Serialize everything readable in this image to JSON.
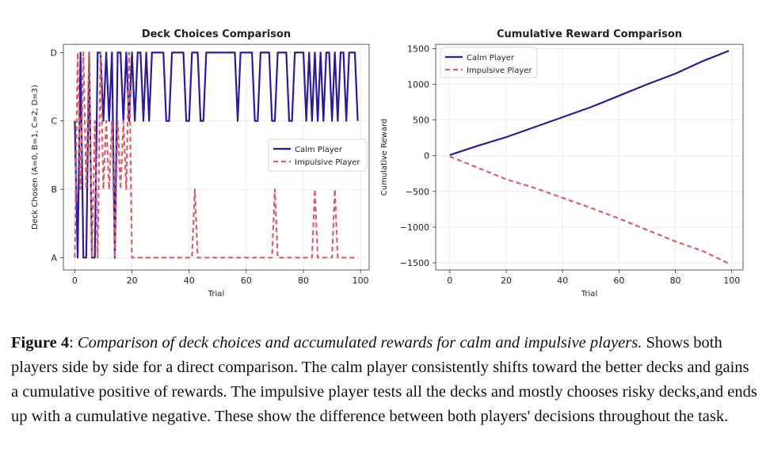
{
  "chart_data": [
    {
      "type": "line",
      "title": "Deck Choices Comparison",
      "xlabel": "Trial",
      "ylabel": "Deck Chosen (A=0, B=1, C=2, D=3)",
      "xlim": [
        -4,
        103
      ],
      "ylim": [
        -0.18,
        3.12
      ],
      "xticks": [
        0,
        20,
        40,
        60,
        80,
        100
      ],
      "yticks": [
        0,
        1,
        2,
        3
      ],
      "ytick_labels": [
        "A",
        "B",
        "C",
        "D"
      ],
      "grid": true,
      "legend": "center-right",
      "series": [
        {
          "name": "Calm Player",
          "color": "#2b1b9a",
          "style": "solid",
          "values": [
            2,
            0,
            3,
            0,
            0,
            3,
            0,
            0,
            3,
            3,
            2,
            3,
            2,
            3,
            0,
            3,
            3,
            2,
            3,
            2,
            3,
            2,
            3,
            3,
            2,
            3,
            2,
            3,
            3,
            3,
            3,
            3,
            2,
            2,
            3,
            3,
            3,
            3,
            3,
            2,
            2,
            3,
            3,
            3,
            2,
            2,
            3,
            3,
            3,
            3,
            3,
            3,
            3,
            3,
            3,
            3,
            3,
            2,
            3,
            3,
            3,
            3,
            3,
            2,
            2,
            3,
            3,
            3,
            3,
            2,
            2,
            3,
            3,
            3,
            3,
            2,
            2,
            3,
            3,
            3,
            3,
            2,
            3,
            2,
            3,
            2,
            3,
            2,
            3,
            3,
            2,
            3,
            2,
            3,
            3,
            2,
            3,
            3,
            3,
            2
          ]
        },
        {
          "name": "Impulsive Player",
          "color": "#d95f6a",
          "style": "dashed",
          "values": [
            0,
            3,
            1,
            3,
            1,
            3,
            0,
            2,
            0,
            3,
            1,
            2,
            1,
            2,
            0,
            2,
            1,
            2,
            1,
            3,
            0,
            0,
            0,
            0,
            0,
            0,
            0,
            0,
            0,
            0,
            0,
            0,
            0,
            0,
            0,
            0,
            0,
            0,
            0,
            0,
            0,
            0,
            1,
            0,
            0,
            0,
            0,
            0,
            0,
            0,
            0,
            0,
            0,
            0,
            0,
            0,
            0,
            0,
            0,
            0,
            0,
            0,
            0,
            0,
            0,
            0,
            0,
            0,
            0,
            0,
            1,
            0,
            0,
            0,
            0,
            0,
            0,
            0,
            0,
            0,
            0,
            0,
            0,
            0,
            1,
            0,
            0,
            0,
            0,
            0,
            0,
            1,
            0,
            0,
            0,
            0,
            0,
            0,
            0,
            0
          ]
        }
      ]
    },
    {
      "type": "line",
      "title": "Cumulative Reward Comparison",
      "xlabel": "Trial",
      "ylabel": "Cumulative Reward",
      "xlim": [
        -5,
        104
      ],
      "ylim": [
        -1600,
        1560
      ],
      "xticks": [
        0,
        20,
        40,
        60,
        80,
        100
      ],
      "yticks": [
        -1500,
        -1000,
        -500,
        0,
        500,
        1000,
        1500
      ],
      "ytick_labels": [
        "−1500",
        "−1000",
        "−500",
        "0",
        "500",
        "1000",
        "1500"
      ],
      "grid": true,
      "legend": "top-left",
      "series": [
        {
          "name": "Calm Player",
          "color": "#2b1b9a",
          "style": "solid",
          "x": [
            0,
            10,
            20,
            30,
            40,
            50,
            60,
            70,
            80,
            90,
            99
          ],
          "values": [
            10,
            140,
            260,
            400,
            540,
            680,
            840,
            1000,
            1150,
            1330,
            1470
          ]
        },
        {
          "name": "Impulsive Player",
          "color": "#d95f6a",
          "style": "dashed",
          "x": [
            0,
            10,
            20,
            30,
            40,
            50,
            60,
            70,
            80,
            90,
            99
          ],
          "values": [
            -10,
            -170,
            -330,
            -450,
            -590,
            -730,
            -880,
            -1040,
            -1200,
            -1340,
            -1510
          ]
        }
      ]
    }
  ],
  "caption": {
    "label": "Figure 4",
    "sep": ": ",
    "title": "Comparison of deck choices and accumulated rewards for calm and impulsive players.",
    "body": " Shows both players side by side for a direct comparison. The calm player consistently shifts toward the better decks and gains a cumulative positive of  rewards. The impulsive player tests all the decks and  mostly chooses risky decks,and ends up with a cumulative negative. These show the difference between both players' decisions throughout the task."
  }
}
